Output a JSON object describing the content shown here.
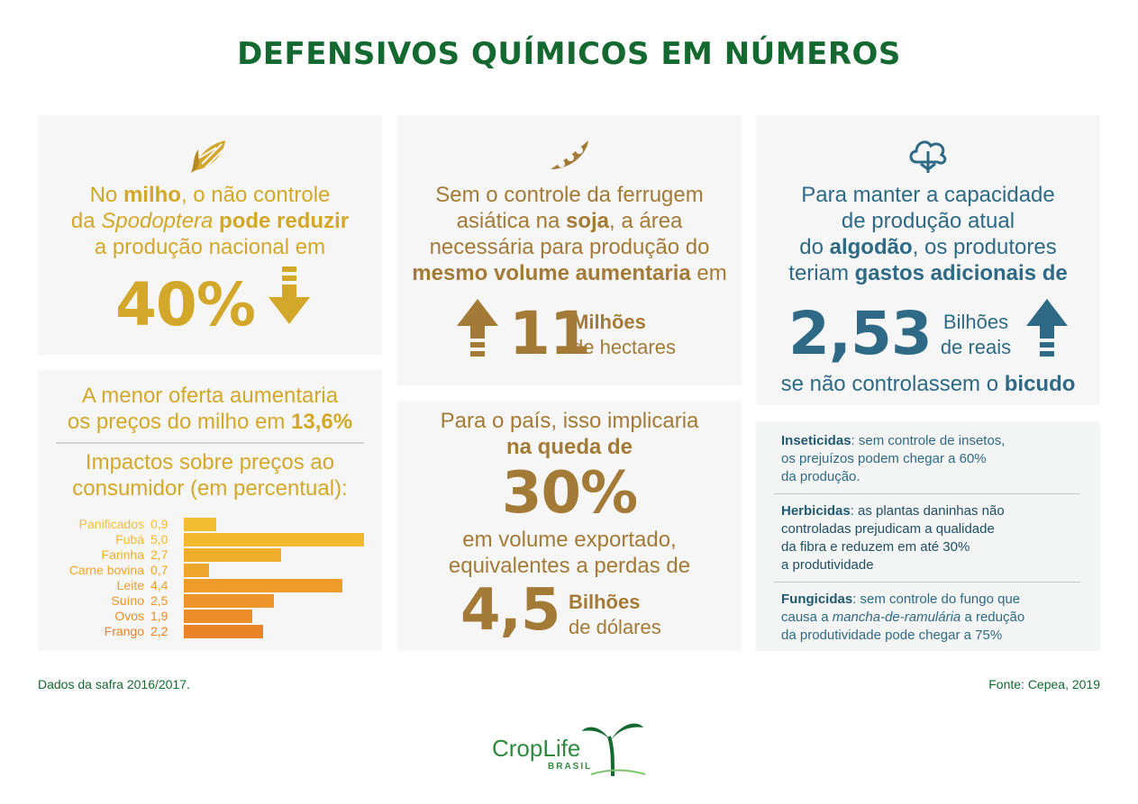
{
  "title": "DEFENSIVOS QUÍMICOS EM NÚMEROS",
  "colors": {
    "green": "#13692f",
    "corn": "#d3a82a",
    "soy": "#a47a37",
    "cotton": "#2e6a86",
    "card_bg": "#f6f6f6"
  },
  "icons": [
    "corn-icon",
    "soybean-icon",
    "cotton-icon",
    "arrow-down-icon",
    "arrow-up-icon"
  ],
  "corn_card": {
    "l1_a": "No ",
    "l1_b": "milho",
    "l1_c": ", o não controle",
    "l2_a": "da ",
    "l2_b": "Spodoptera",
    "l2_c": " pode reduzir",
    "l3": "a produção nacional em",
    "big": "40%"
  },
  "price_card": {
    "l1": "A menor oferta aumentaria",
    "l2_a": "os preços do milho em ",
    "l2_b": "13,6%",
    "l3": "Impactos sobre preços ao",
    "l4": "consumidor (em percentual):"
  },
  "soy_card": {
    "l1": "Sem o controle da ferrugem",
    "l2_a": "asiática na ",
    "l2_b": "soja",
    "l2_c": ", a área",
    "l3": "necessária para produção do",
    "l4_a": "mesmo volume aumentaria",
    "l4_b": " em",
    "big": "11",
    "unit_a": "Milhões",
    "unit_b": "de hectares"
  },
  "export_card": {
    "l1": "Para o país, isso implicaria",
    "l2": "na queda de",
    "big": "30%",
    "l3": "em volume exportado,",
    "l4": "equivalentes a perdas de",
    "big2": "4,5",
    "unit_a": "Bilhões",
    "unit_b": "de dólares"
  },
  "cotton_card": {
    "l1": "Para manter a capacidade",
    "l2": "de produção atual",
    "l3_a": "do ",
    "l3_b": "algodão",
    "l3_c": ", os produtores",
    "l4_a": "teriam ",
    "l4_b": "gastos adicionais de",
    "big": "2,53",
    "unit_a": "Bilhões",
    "unit_b": "de reais",
    "l5_a": "se não controlassem o ",
    "l5_b": "bicudo"
  },
  "notes": {
    "n1_a": "Inseticidas",
    "n1_b": ": sem controle de insetos,",
    "n1_l2": "os prejuízos podem chegar a 60%",
    "n1_l3": "da produção.",
    "n2_a": "Herbicidas",
    "n2_b": ": as plantas daninhas não",
    "n2_l2": "controladas prejudicam a qualidade",
    "n2_l3": "da fibra e reduzem em até 30%",
    "n2_l4": "a produtividade",
    "n3_a": "Fungicidas",
    "n3_b": ": sem controle do fungo que",
    "n3_l2_a": "causa a ",
    "n3_l2_b": "mancha-de-ramulária",
    "n3_l2_c": " a redução",
    "n3_l3": "da produtividade pode chegar a 75%"
  },
  "footer": {
    "left": "Dados da safra 2016/2017.",
    "right": "Fonte: Cepea, 2019",
    "logo_main": "CropLife",
    "logo_sub": "BRASIL"
  },
  "chart_data": {
    "type": "bar",
    "orientation": "horizontal",
    "categories": [
      "Panificados",
      "Fubá",
      "Farinha",
      "Carne bovina",
      "Leite",
      "Suíno",
      "Ovos",
      "Frango"
    ],
    "values": [
      0.9,
      5.0,
      2.7,
      0.7,
      4.4,
      2.5,
      1.9,
      2.2
    ],
    "value_labels": [
      "0,9",
      "5,0",
      "2,7",
      "0,7",
      "4,4",
      "2,5",
      "1,9",
      "2,2"
    ],
    "colors": [
      "#f2bd30",
      "#f2b92e",
      "#f0ad2c",
      "#efa42b",
      "#ee9d2a",
      "#ed952a",
      "#eb8c28",
      "#ea8227"
    ],
    "xlim": [
      0,
      5.0
    ]
  }
}
